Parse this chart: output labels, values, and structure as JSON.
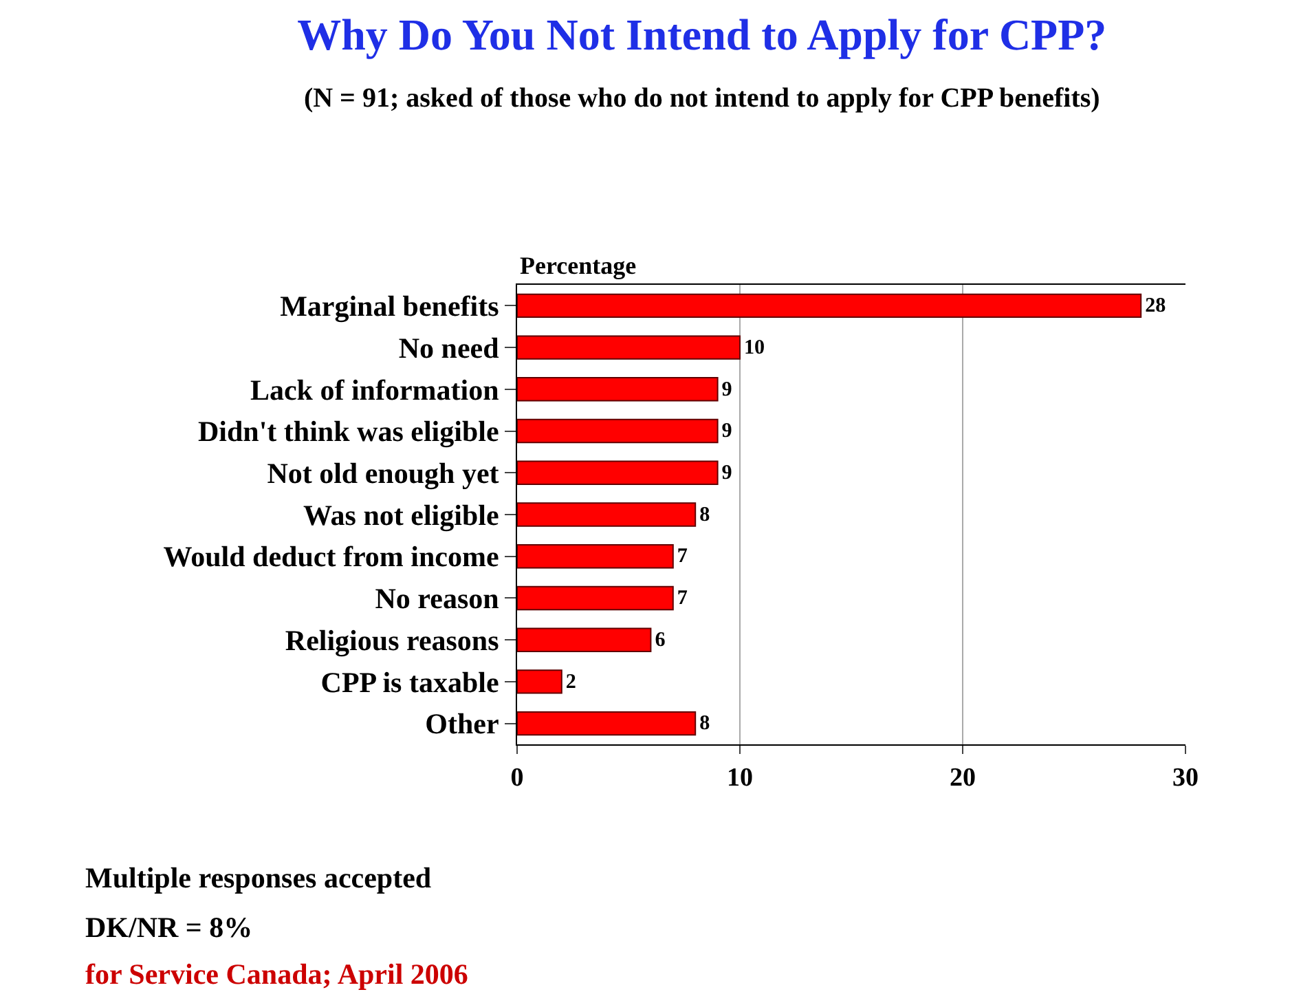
{
  "chart_data": {
    "type": "bar",
    "orientation": "horizontal",
    "title": "Why Do You Not Intend to Apply for CPP?",
    "subtitle": "(N = 91; asked of those who do not intend to apply for CPP benefits)",
    "xlabel": "Percentage",
    "categories": [
      "Marginal benefits",
      "No need",
      "Lack of information",
      "Didn't think was eligible",
      "Not old enough yet",
      "Was not eligible",
      "Would deduct from income",
      "No reason",
      "Religious reasons",
      "CPP is taxable",
      "Other"
    ],
    "values": [
      28,
      10,
      9,
      9,
      9,
      8,
      7,
      7,
      6,
      2,
      8
    ],
    "color": "#ff0000",
    "data_labels": true,
    "xlim": [
      0,
      30
    ],
    "xticks": [
      0,
      10,
      20,
      30
    ],
    "grid": "x",
    "legend": false,
    "annotations": [
      "Multiple responses accepted",
      "DK/NR = 8%",
      "for Service Canada; April 2006"
    ]
  }
}
